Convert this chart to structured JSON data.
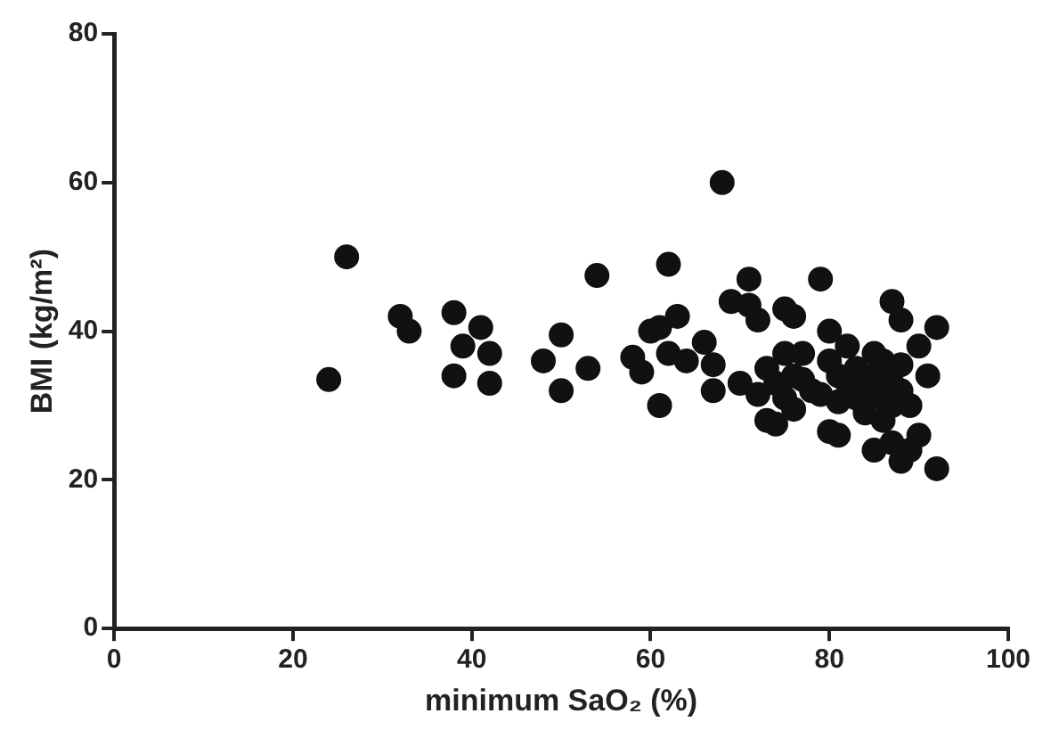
{
  "chart_data": {
    "type": "scatter",
    "xlabel": "minimum SaO₂ (%)",
    "ylabel": "BMI (kg/m²)",
    "xlim": [
      0,
      100
    ],
    "xticks": [
      0,
      20,
      40,
      60,
      80,
      100
    ],
    "ylim": [
      0,
      80
    ],
    "yticks": [
      0,
      20,
      40,
      60,
      80
    ],
    "grid": false,
    "legend": false,
    "marker": "circle",
    "series": [
      {
        "color": "#111111",
        "x": [
          24,
          26,
          32,
          33,
          38,
          38,
          39,
          41,
          42,
          42,
          48,
          50,
          50,
          53,
          54,
          58,
          59,
          60,
          61,
          61,
          62,
          62,
          63,
          64,
          66,
          67,
          67,
          68,
          69,
          70,
          71,
          71,
          72,
          72,
          73,
          73,
          74,
          74,
          75,
          75,
          75,
          76,
          76,
          76,
          77,
          77,
          78,
          79,
          79,
          80,
          80,
          80,
          81,
          81,
          81,
          82,
          82,
          83,
          83,
          84,
          84,
          85,
          85,
          85,
          86,
          86,
          86,
          87,
          87,
          87,
          87,
          88,
          88,
          88,
          88,
          89,
          89,
          90,
          90,
          91,
          92,
          92
        ],
        "values": [
          33.5,
          50,
          42,
          40,
          42.5,
          34,
          38,
          40.5,
          37,
          33,
          36,
          39.5,
          32,
          35,
          47.5,
          36.5,
          34.5,
          40,
          30,
          40.5,
          49,
          37,
          42,
          36,
          38.5,
          32,
          35.5,
          60,
          44,
          33,
          47,
          43.5,
          31.5,
          41.5,
          28,
          35,
          33,
          27.5,
          43,
          37,
          31,
          42,
          34,
          29.5,
          37,
          33.5,
          32,
          47,
          31.5,
          40,
          36,
          26.5,
          34,
          30.5,
          26,
          38,
          33,
          35,
          31,
          32,
          29,
          37,
          34,
          24,
          31,
          36,
          28,
          44,
          33,
          30,
          25,
          41.5,
          35.5,
          32,
          22.5,
          30,
          24,
          38,
          26,
          34,
          40.5,
          21.5
        ]
      }
    ]
  }
}
